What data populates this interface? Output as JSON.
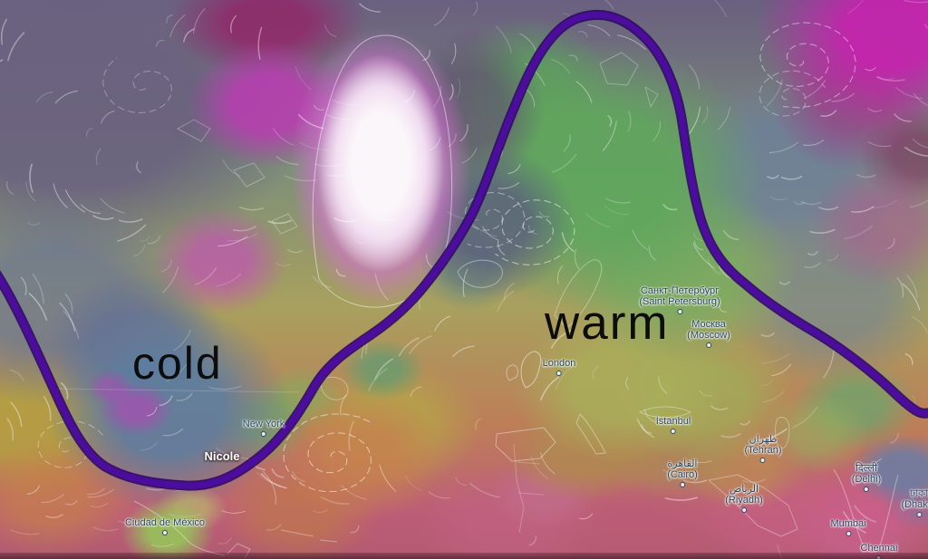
{
  "map": {
    "annotations": {
      "cold": "cold",
      "warm": "warm"
    },
    "storm_label": "Nicole",
    "cities": [
      {
        "id": "new-york",
        "line1": "New York",
        "line2": ""
      },
      {
        "id": "london",
        "line1": "London",
        "line2": ""
      },
      {
        "id": "saint-petersburg",
        "line1": "Санкт-Петербург",
        "line2": "(Saint Petersburg)"
      },
      {
        "id": "moscow",
        "line1": "Москва",
        "line2": "(Moscow)"
      },
      {
        "id": "istanbul",
        "line1": "İstanbul",
        "line2": ""
      },
      {
        "id": "tehran",
        "line1": "طهران",
        "line2": "(Tehran)"
      },
      {
        "id": "cairo",
        "line1": "القاهرة",
        "line2": "(Cairo)"
      },
      {
        "id": "riyadh",
        "line1": "الرياض",
        "line2": "(Riyadh)"
      },
      {
        "id": "delhi",
        "line1": "दिल्ली",
        "line2": "(Delhi)"
      },
      {
        "id": "dhaka",
        "line1": "ঢাকা",
        "line2": "(Dhaka)"
      },
      {
        "id": "mumbai",
        "line1": "Mumbai",
        "line2": ""
      },
      {
        "id": "chennai",
        "line1": "Chennai",
        "line2": ""
      },
      {
        "id": "mexico-city",
        "line1": "Ciudad de México",
        "line2": ""
      }
    ],
    "colors": {
      "jet_outer": "#2d0a63",
      "jet_inner": "#4c0d9e",
      "annotation_text": "#0d0d0d",
      "city_label": "#27465f",
      "storm_label": "#ffffff"
    }
  }
}
